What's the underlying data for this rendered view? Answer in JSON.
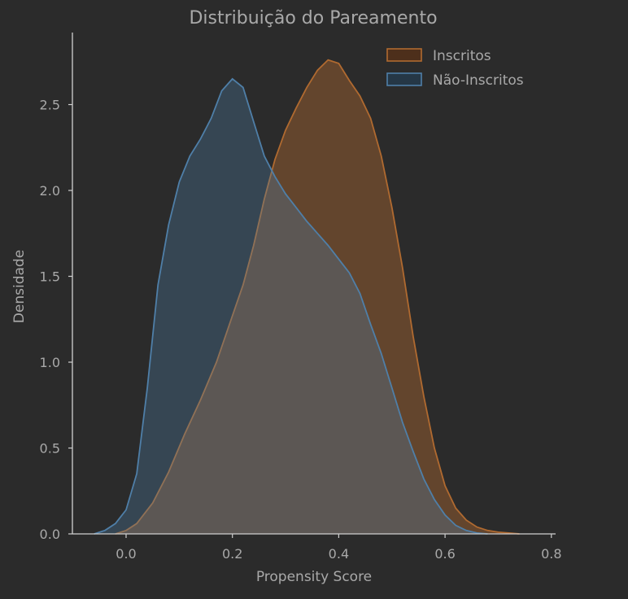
{
  "chart_data": {
    "type": "area",
    "title": "Distribuição do Pareamento",
    "xlabel": "Propensity Score",
    "ylabel": "Densidade",
    "xlim": [
      -0.1,
      0.8
    ],
    "ylim": [
      0,
      2.9
    ],
    "xticks": [
      "0.0",
      "0.2",
      "0.4",
      "0.6",
      "0.8"
    ],
    "yticks": [
      "0.0",
      "0.5",
      "1.0",
      "1.5",
      "2.0",
      "2.5"
    ],
    "grid": false,
    "legend_position": "top-right",
    "series": [
      {
        "name": "Inscritos",
        "color": "#b06a30",
        "fill": "#4d2f1b",
        "x": [
          -0.02,
          0.0,
          0.02,
          0.05,
          0.08,
          0.11,
          0.14,
          0.17,
          0.2,
          0.22,
          0.24,
          0.26,
          0.28,
          0.3,
          0.32,
          0.34,
          0.36,
          0.38,
          0.4,
          0.42,
          0.44,
          0.46,
          0.48,
          0.5,
          0.52,
          0.54,
          0.56,
          0.58,
          0.6,
          0.62,
          0.64,
          0.66,
          0.68,
          0.7,
          0.72,
          0.74
        ],
        "y": [
          0.0,
          0.02,
          0.06,
          0.18,
          0.36,
          0.58,
          0.78,
          1.0,
          1.27,
          1.45,
          1.68,
          1.95,
          2.18,
          2.35,
          2.48,
          2.6,
          2.7,
          2.76,
          2.74,
          2.64,
          2.55,
          2.42,
          2.2,
          1.9,
          1.55,
          1.15,
          0.8,
          0.5,
          0.28,
          0.15,
          0.08,
          0.04,
          0.02,
          0.01,
          0.005,
          0.0
        ]
      },
      {
        "name": "Não-Inscritos",
        "color": "#4f7fa8",
        "fill": "#253746",
        "x": [
          -0.06,
          -0.04,
          -0.02,
          0.0,
          0.02,
          0.04,
          0.06,
          0.08,
          0.1,
          0.12,
          0.14,
          0.16,
          0.18,
          0.2,
          0.22,
          0.24,
          0.26,
          0.28,
          0.3,
          0.32,
          0.34,
          0.36,
          0.38,
          0.4,
          0.42,
          0.44,
          0.46,
          0.48,
          0.5,
          0.52,
          0.54,
          0.56,
          0.58,
          0.6,
          0.62,
          0.64,
          0.66,
          0.68
        ],
        "y": [
          0.0,
          0.02,
          0.06,
          0.14,
          0.35,
          0.85,
          1.45,
          1.8,
          2.05,
          2.2,
          2.3,
          2.42,
          2.58,
          2.65,
          2.6,
          2.4,
          2.2,
          2.08,
          1.98,
          1.9,
          1.82,
          1.75,
          1.68,
          1.6,
          1.52,
          1.4,
          1.22,
          1.05,
          0.85,
          0.65,
          0.48,
          0.32,
          0.2,
          0.11,
          0.05,
          0.02,
          0.005,
          0.0
        ]
      }
    ]
  }
}
